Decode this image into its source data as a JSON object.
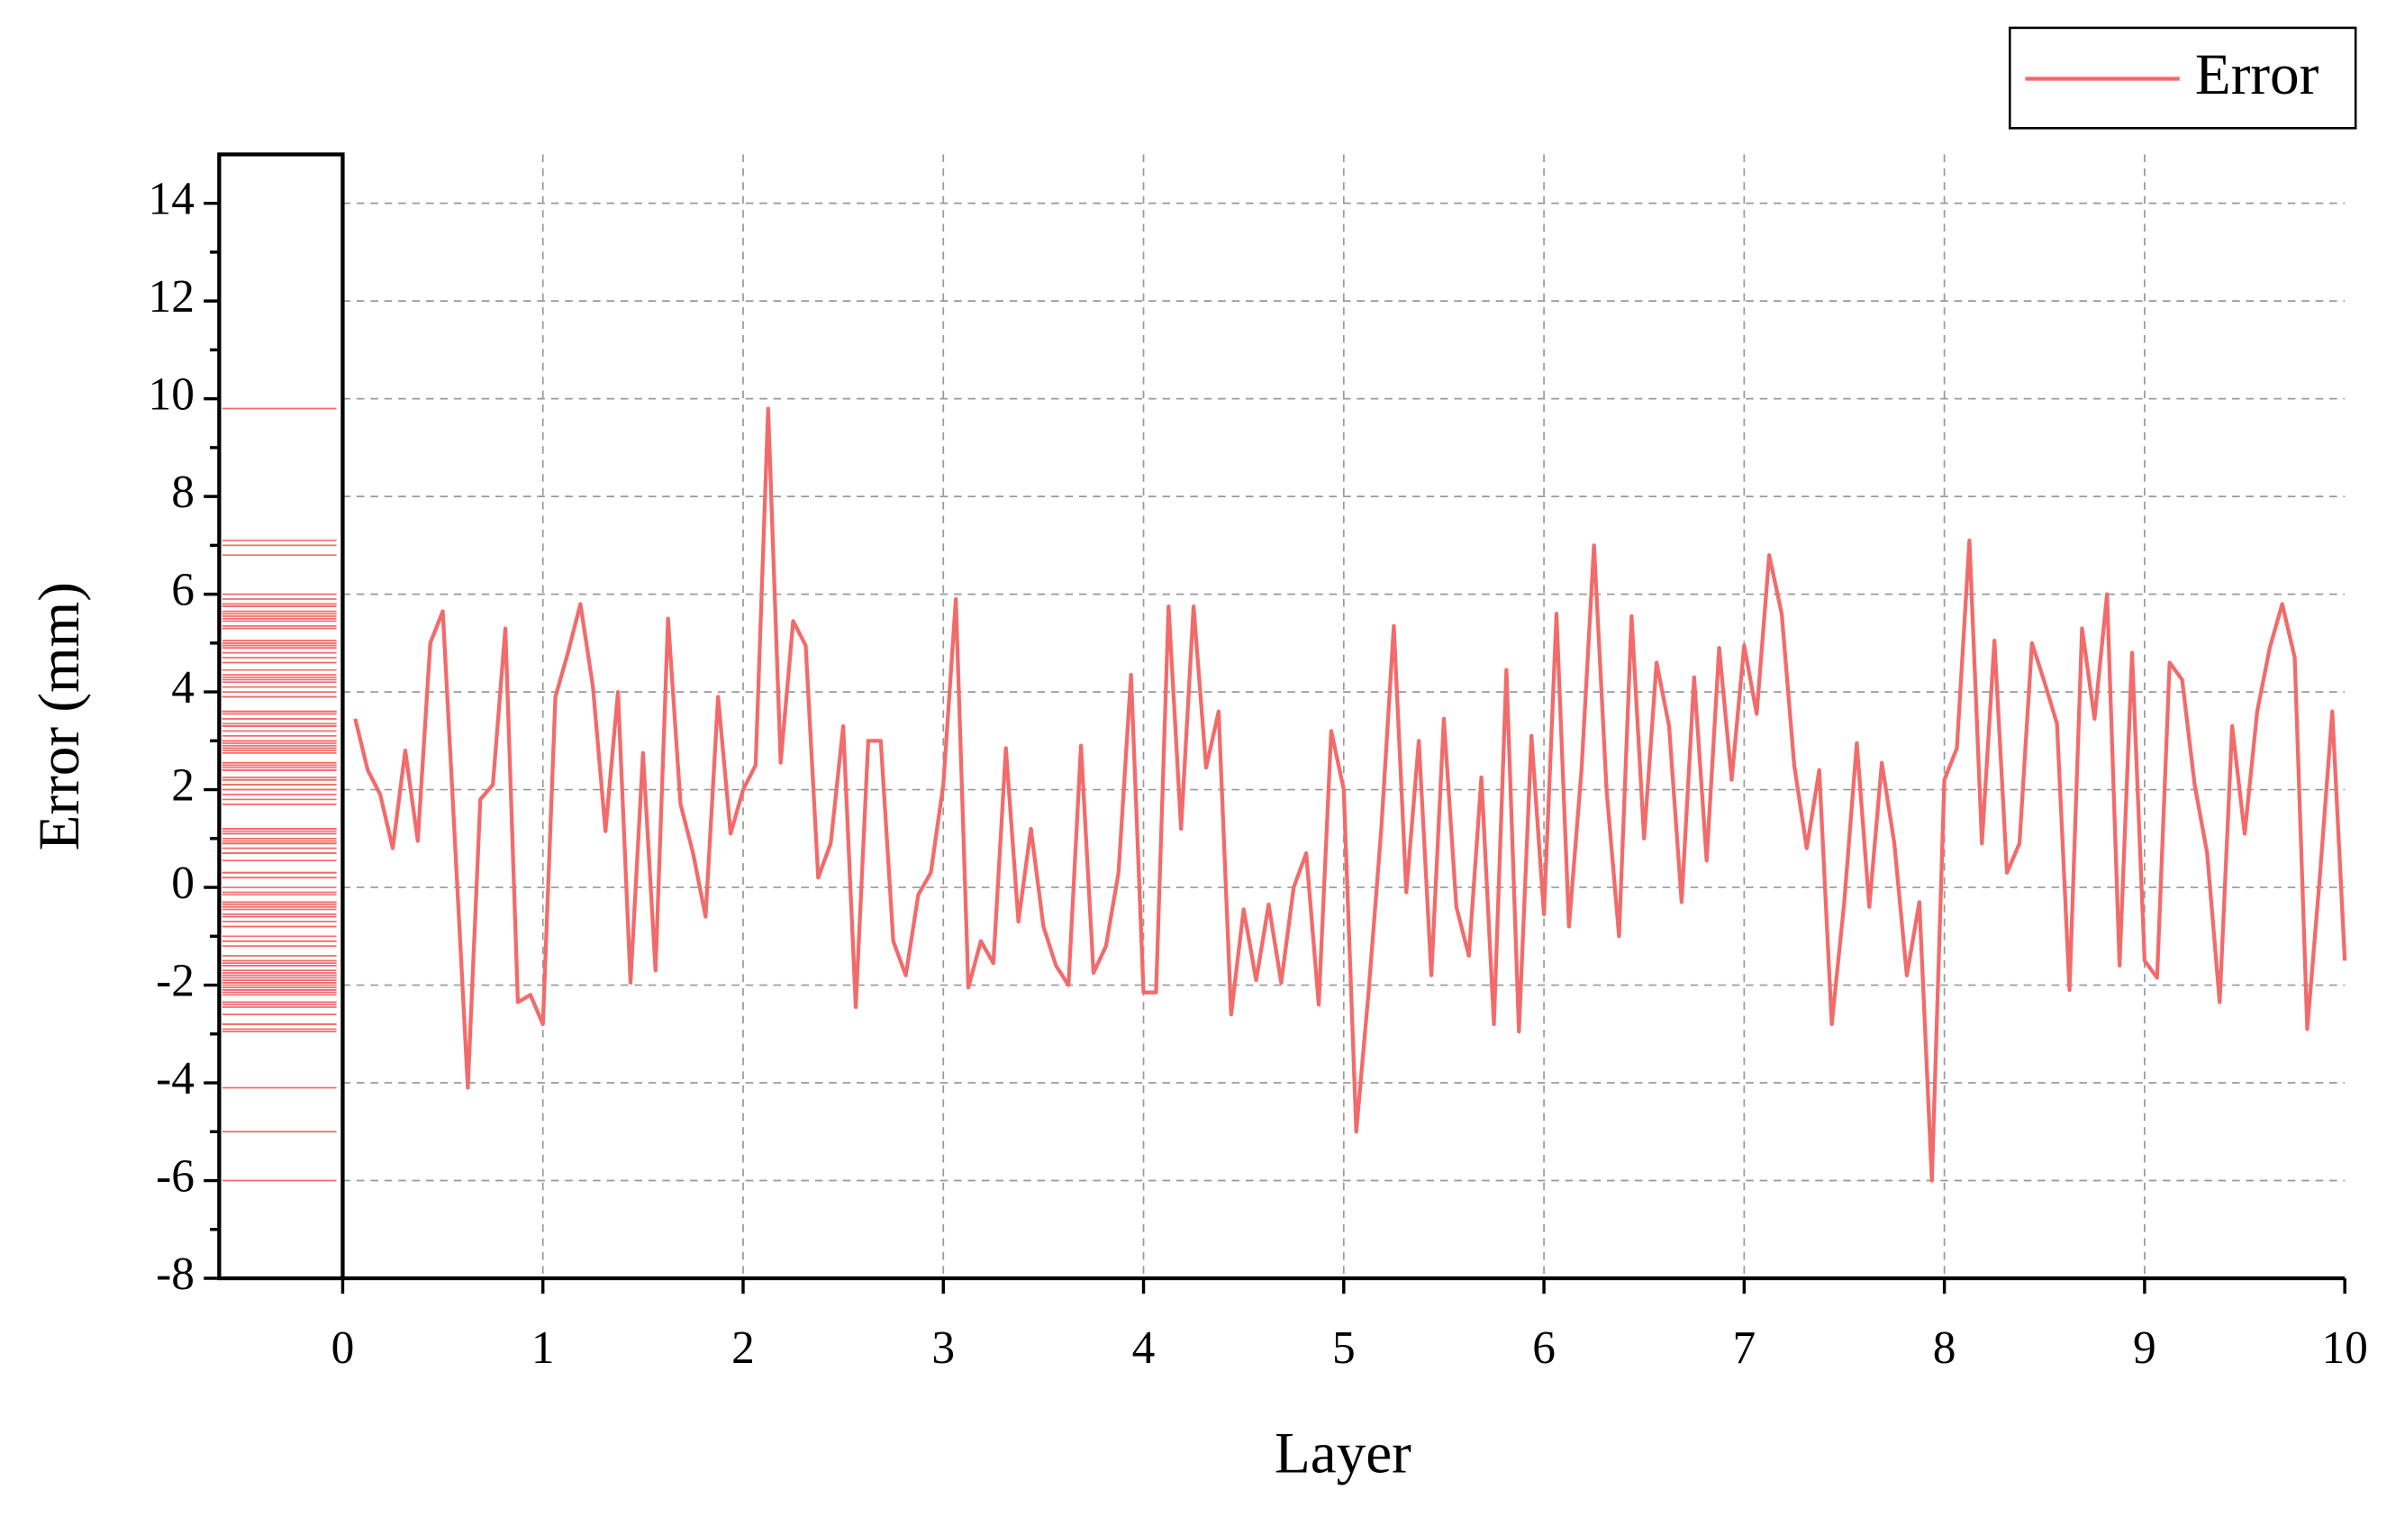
{
  "chart_data": {
    "type": "line",
    "x_label": "Layer",
    "y_label": "Error (mm)",
    "xlim": [
      0,
      10
    ],
    "xticks": [
      0,
      1,
      2,
      3,
      4,
      5,
      6,
      7,
      8,
      9,
      10
    ],
    "ylim": [
      -8,
      15
    ],
    "yticks": [
      -8,
      -6,
      -4,
      -2,
      0,
      2,
      4,
      6,
      8,
      10,
      12,
      14
    ],
    "grid": true,
    "legend": "top-right",
    "rug": true,
    "x": [
      0.0625,
      0.125,
      0.1875,
      0.25,
      0.3125,
      0.375,
      0.4375,
      0.5,
      0.5625,
      0.625,
      0.6875,
      0.75,
      0.8125,
      0.875,
      0.9375,
      1,
      1.0625,
      1.125,
      1.1875,
      1.25,
      1.3125,
      1.375,
      1.4375,
      1.5,
      1.5625,
      1.625,
      1.6875,
      1.75,
      1.8125,
      1.875,
      1.9375,
      2,
      2.0625,
      2.125,
      2.1875,
      2.25,
      2.3125,
      2.375,
      2.4375,
      2.5,
      2.5625,
      2.625,
      2.6875,
      2.75,
      2.8125,
      2.875,
      2.9375,
      3,
      3.0625,
      3.125,
      3.1875,
      3.25,
      3.3125,
      3.375,
      3.4375,
      3.5,
      3.5625,
      3.625,
      3.6875,
      3.75,
      3.8125,
      3.875,
      3.9375,
      4,
      4.0625,
      4.125,
      4.1875,
      4.25,
      4.3125,
      4.375,
      4.4375,
      4.5,
      4.5625,
      4.625,
      4.6875,
      4.75,
      4.8125,
      4.875,
      4.9375,
      5,
      5.0625,
      5.125,
      5.1875,
      5.25,
      5.3125,
      5.375,
      5.4375,
      5.5,
      5.5625,
      5.625,
      5.6875,
      5.75,
      5.8125,
      5.875,
      5.9375,
      6,
      6.0625,
      6.125,
      6.1875,
      6.25,
      6.3125,
      6.375,
      6.4375,
      6.5,
      6.5625,
      6.625,
      6.6875,
      6.75,
      6.8125,
      6.875,
      6.9375,
      7,
      7.0625,
      7.125,
      7.1875,
      7.25,
      7.3125,
      7.375,
      7.4375,
      7.5,
      7.5625,
      7.625,
      7.6875,
      7.75,
      7.8125,
      7.875,
      7.9375,
      8,
      8.0625,
      8.125,
      8.1875,
      8.25,
      8.3125,
      8.375,
      8.4375,
      8.5,
      8.5625,
      8.625,
      8.6875,
      8.75,
      8.8125,
      8.875,
      8.9375,
      9,
      9.0625,
      9.125,
      9.1875,
      9.25,
      9.3125,
      9.375,
      9.4375,
      9.5,
      9.5625,
      9.625,
      9.6875,
      9.75,
      9.8125,
      9.875,
      9.9375,
      10
    ],
    "series": [
      {
        "name": "Error",
        "color": "#f26b6b",
        "values": [
          3.45,
          2.4,
          1.9,
          0.8,
          2.8,
          0.95,
          5.0,
          5.65,
          0.8,
          -4.1,
          1.8,
          2.1,
          5.3,
          -2.35,
          -2.2,
          -2.8,
          3.9,
          4.8,
          5.8,
          4.1,
          1.15,
          4.0,
          -1.95,
          2.75,
          -1.7,
          5.5,
          1.7,
          0.7,
          -0.6,
          3.9,
          1.1,
          2.0,
          2.5,
          9.8,
          2.55,
          5.45,
          4.95,
          0.2,
          0.9,
          3.3,
          -2.45,
          3.0,
          3.0,
          -1.1,
          -1.8,
          -0.15,
          0.3,
          2.1,
          5.9,
          -2.05,
          -1.1,
          -1.55,
          2.85,
          -0.7,
          1.2,
          -0.8,
          -1.6,
          -2.0,
          2.9,
          -1.75,
          -1.2,
          0.3,
          4.35,
          -2.15,
          -2.15,
          5.75,
          1.2,
          5.75,
          2.45,
          3.6,
          -2.6,
          -0.45,
          -1.9,
          -0.35,
          -1.95,
          0.0,
          0.7,
          -2.4,
          3.2,
          2.0,
          -5.0,
          -2.1,
          1.2,
          5.35,
          -0.1,
          3.0,
          -1.8,
          3.45,
          -0.4,
          -1.4,
          2.25,
          -2.8,
          4.45,
          -2.95,
          3.1,
          -0.55,
          5.6,
          -0.8,
          2.4,
          7.0,
          2.0,
          -1.0,
          5.55,
          1.0,
          4.6,
          3.3,
          -0.3,
          4.3,
          0.55,
          4.9,
          2.2,
          4.95,
          3.55,
          6.8,
          5.6,
          2.5,
          0.8,
          2.4,
          -2.8,
          -0.3,
          2.95,
          -0.4,
          2.55,
          0.9,
          -1.8,
          -0.3,
          -6.0,
          2.2,
          2.85,
          7.1,
          0.9,
          5.05,
          0.3,
          0.9,
          5.0,
          4.2,
          3.35,
          -2.1,
          5.3,
          3.45,
          6.0,
          -1.6,
          4.8,
          -1.5,
          -1.85,
          4.6,
          4.25,
          2.1,
          0.7,
          -2.35,
          3.3,
          1.1,
          3.6,
          4.9,
          5.8,
          4.7,
          -2.9,
          0.2,
          3.6,
          -1.5
        ]
      }
    ]
  }
}
